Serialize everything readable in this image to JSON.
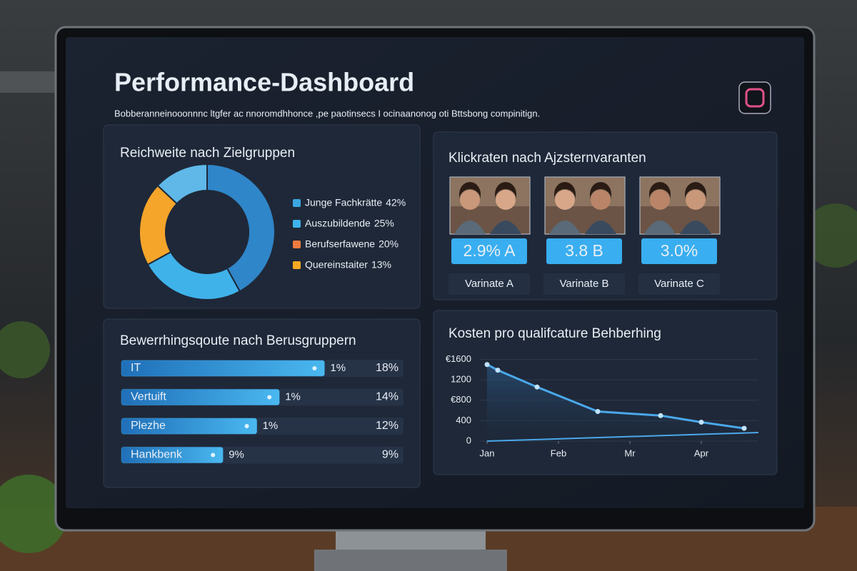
{
  "header": {
    "title": "Performance-Dashboard",
    "subtitle": "Bobberanneinooonnnc ltgfer ac nnoromdhhonce ,pe paotinsecs I ocinaanonog oti Bttsbong compinitign."
  },
  "chart_data": [
    {
      "type": "pie",
      "title": "Reichweite nach Zielgruppen",
      "categories": [
        "Junge Fachkrätte",
        "Auszubildende",
        "Berufserfawene",
        "Quereinstaiter"
      ],
      "values": [
        42,
        25,
        20,
        13
      ],
      "value_labels": [
        "42%",
        "25%",
        "20%",
        "13%"
      ],
      "colors": [
        "#2f86c9",
        "#3fb2ea",
        "#f5a52a",
        "#5fb8e8"
      ],
      "legend_colors": [
        "#3aa6e0",
        "#3fb2ea",
        "#f07b3f",
        "#f7a823"
      ]
    },
    {
      "type": "bar",
      "title": "Bewerrhingsqoute nach Berusgruppern",
      "categories": [
        "IT",
        "Vertuift",
        "Plezhe",
        "Hankbenk"
      ],
      "values": [
        18,
        14,
        12,
        9
      ],
      "value_labels": [
        "18%",
        "14%",
        "12%",
        "9%"
      ],
      "secondary_labels": [
        "1%",
        "1%",
        "1%",
        "9%"
      ],
      "xlim": [
        0,
        25
      ],
      "color": "#3a9fe0"
    },
    {
      "type": "line",
      "title": "Kosten pro qualifcature Behberhing",
      "x": [
        0,
        0.15,
        0.7,
        1.55,
        2.43,
        3.0,
        3.6
      ],
      "values": [
        1500,
        1390,
        1060,
        580,
        500,
        370,
        250
      ],
      "xlim": [
        -0.1,
        3.8
      ],
      "xticks": [
        {
          "value": 0,
          "label": "Jan"
        },
        {
          "value": 1,
          "label": "Feb"
        },
        {
          "value": 2,
          "label": "Mr"
        },
        {
          "value": 3,
          "label": "Apr"
        }
      ],
      "ylim": [
        0,
        1650
      ],
      "yticks": [
        {
          "value": 1600,
          "label": "€1600"
        },
        1200,
        {
          "value": 800,
          "label": "€800"
        },
        400,
        0
      ],
      "color": "#4aa8ea"
    }
  ],
  "variants": {
    "title": "Klickraten nach Ajzsternvaranten",
    "items": [
      {
        "rate": "2.9% A",
        "name": "Varinate A"
      },
      {
        "rate": "3.8 B",
        "name": "Varinate B"
      },
      {
        "rate": "3.0%",
        "name": "Varinate C"
      }
    ]
  }
}
